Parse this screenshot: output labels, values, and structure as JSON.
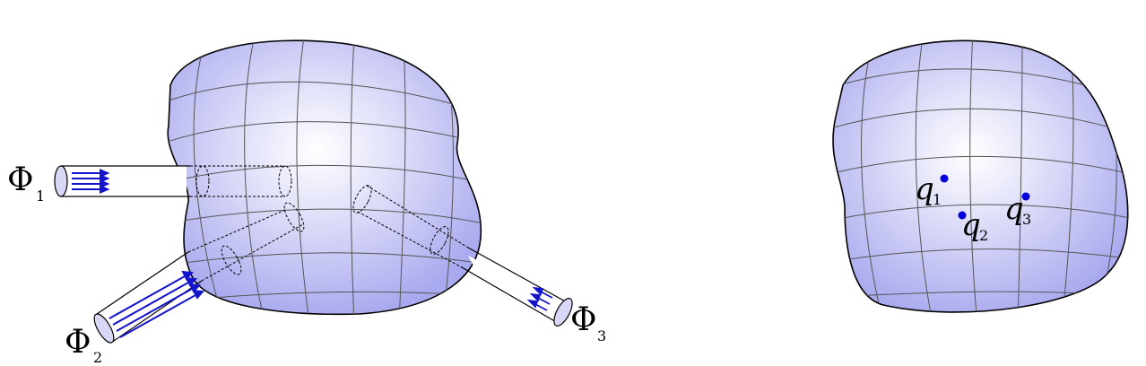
{
  "left_figure": {
    "surface_color": "#b2b2f0",
    "flux_labels": [
      {
        "symbol": "Φ",
        "subscript": "1"
      },
      {
        "symbol": "Φ",
        "subscript": "2"
      },
      {
        "symbol": "Φ",
        "subscript": "3"
      }
    ],
    "arrow_color": "#1414cc"
  },
  "right_figure": {
    "surface_color": "#b2b2f0",
    "charge_color": "#0000dd",
    "charges": [
      {
        "symbol": "q",
        "subscript": "1"
      },
      {
        "symbol": "q",
        "subscript": "2"
      },
      {
        "symbol": "q",
        "subscript": "3"
      }
    ]
  }
}
